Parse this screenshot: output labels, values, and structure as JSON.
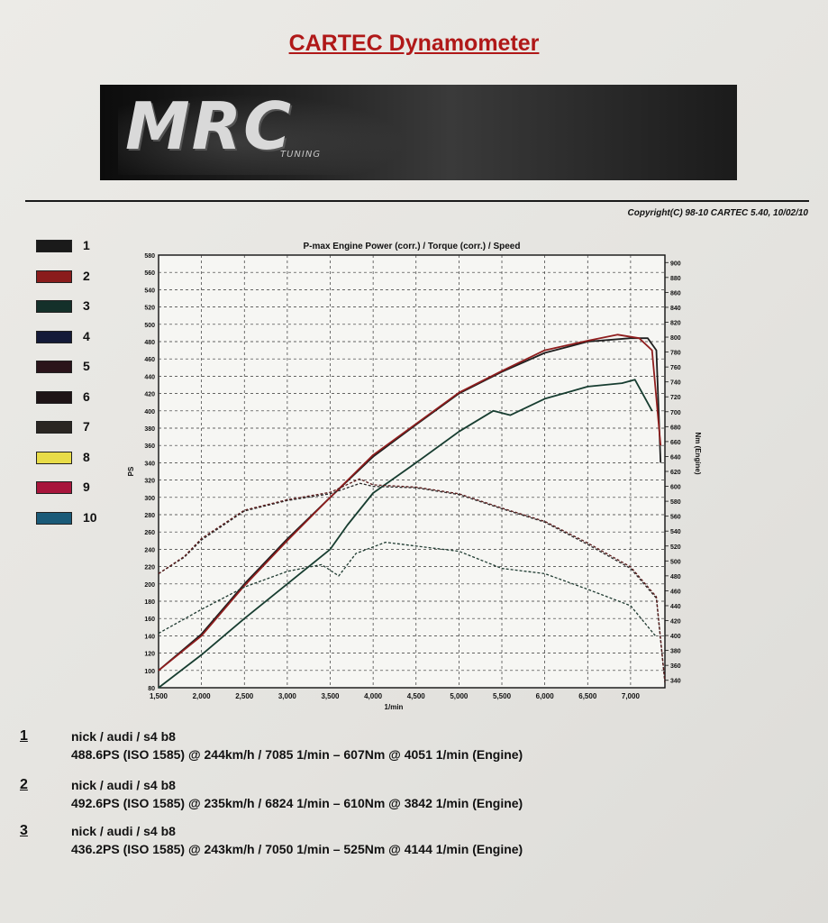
{
  "header": {
    "title": "CARTEC Dynamometer",
    "logo_text": "MRC",
    "logo_subtext": "TUNING",
    "copyright": "Copyright(C) 98-10 CARTEC 5.40, 10/02/10"
  },
  "legend": [
    {
      "label": "1",
      "color": "#1a1a1a"
    },
    {
      "label": "2",
      "color": "#8a1c1c"
    },
    {
      "label": "3",
      "color": "#14302a"
    },
    {
      "label": "4",
      "color": "#141a38"
    },
    {
      "label": "5",
      "color": "#2a141a"
    },
    {
      "label": "6",
      "color": "#1e1416"
    },
    {
      "label": "7",
      "color": "#2a2622"
    },
    {
      "label": "8",
      "color": "#e8dc48"
    },
    {
      "label": "9",
      "color": "#a8163c"
    },
    {
      "label": "10",
      "color": "#1a5a78"
    }
  ],
  "chart_data": {
    "type": "line",
    "title": "P-max Engine Power (corr.) / Torque (corr.) / Speed",
    "xlabel": "1/min",
    "ylabel": "PS",
    "y2label": "Nm (Engine)",
    "xlim": [
      1500,
      7400
    ],
    "ylim": [
      80,
      580
    ],
    "y2lim": [
      330,
      910
    ],
    "x_ticks": [
      "1,500",
      "2,000",
      "2,500",
      "3,000",
      "3,500",
      "4,000",
      "4,500",
      "5,000",
      "5,500",
      "6,000",
      "6,500",
      "7,000"
    ],
    "x_tick_values": [
      1500,
      2000,
      2500,
      3000,
      3500,
      4000,
      4500,
      5000,
      5500,
      6000,
      6500,
      7000
    ],
    "y_ticks": [
      "80",
      "100",
      "120",
      "140",
      "160",
      "180",
      "200",
      "220",
      "240",
      "260",
      "280",
      "300",
      "320",
      "340",
      "360",
      "380",
      "400",
      "420",
      "440",
      "460",
      "480",
      "500",
      "520",
      "540",
      "560",
      "580"
    ],
    "y2_ticks": [
      "340",
      "360",
      "380",
      "400",
      "420",
      "440",
      "460",
      "480",
      "500",
      "520",
      "540",
      "560",
      "580",
      "600",
      "620",
      "640",
      "660",
      "680",
      "700",
      "720",
      "740",
      "760",
      "780",
      "800",
      "820",
      "840",
      "860",
      "880",
      "900"
    ],
    "grid": true,
    "series": [
      {
        "name": "1",
        "quantity": "power",
        "color": "#1e1e1e",
        "dashed": false,
        "x": [
          1500,
          2000,
          2500,
          3000,
          3500,
          4000,
          4500,
          5000,
          5500,
          6000,
          6500,
          7000,
          7200,
          7300,
          7350
        ],
        "y": [
          100,
          142,
          200,
          252,
          300,
          347,
          384,
          420,
          445,
          467,
          480,
          484,
          484,
          470,
          340
        ]
      },
      {
        "name": "2",
        "quantity": "power",
        "color": "#8f1d1d",
        "dashed": false,
        "x": [
          1500,
          2000,
          2500,
          3000,
          3500,
          4000,
          4500,
          5000,
          5500,
          6000,
          6500,
          6850,
          7100,
          7250,
          7350
        ],
        "y": [
          100,
          140,
          198,
          250,
          300,
          349,
          385,
          421,
          446,
          470,
          481,
          488,
          484,
          470,
          360
        ]
      },
      {
        "name": "3",
        "quantity": "power",
        "color": "#173d30",
        "dashed": false,
        "x": [
          1500,
          2000,
          2500,
          3000,
          3500,
          3700,
          4000,
          4500,
          5000,
          5400,
          5600,
          6000,
          6500,
          6900,
          7050,
          7250
        ],
        "y": [
          80,
          118,
          160,
          200,
          240,
          268,
          305,
          340,
          376,
          400,
          395,
          414,
          428,
          432,
          436,
          400
        ]
      },
      {
        "name": "1",
        "quantity": "torque",
        "color": "#2a2a2a",
        "dashed": true,
        "x": [
          1500,
          1800,
          2000,
          2500,
          3000,
          3500,
          3850,
          4000,
          4500,
          5000,
          5500,
          6000,
          6500,
          7000,
          7300,
          7400
        ],
        "y": [
          483,
          505,
          528,
          567,
          581,
          590,
          604,
          600,
          598,
          589,
          570,
          552,
          522,
          490,
          450,
          336
        ]
      },
      {
        "name": "2",
        "quantity": "torque",
        "color": "#5a1a1a",
        "dashed": true,
        "x": [
          1500,
          1800,
          2000,
          2500,
          3000,
          3500,
          3842,
          4000,
          4500,
          5000,
          5500,
          6000,
          6500,
          7000,
          7300,
          7400
        ],
        "y": [
          483,
          506,
          530,
          568,
          582,
          592,
          610,
          602,
          599,
          590,
          571,
          553,
          524,
          492,
          452,
          338
        ]
      },
      {
        "name": "3",
        "quantity": "torque",
        "color": "#1e3a30",
        "dashed": true,
        "x": [
          1500,
          2000,
          2500,
          3000,
          3400,
          3600,
          3800,
          4144,
          4500,
          5000,
          5500,
          6000,
          6500,
          7000,
          7300
        ],
        "y": [
          403,
          435,
          465,
          486,
          495,
          480,
          510,
          525,
          520,
          513,
          490,
          483,
          462,
          440,
          398
        ]
      }
    ]
  },
  "results": [
    {
      "num": "1",
      "line1": "nick / audi / s4 b8",
      "line2": "488.6PS (ISO 1585) @ 244km/h / 7085 1/min – 607Nm @ 4051 1/min (Engine)"
    },
    {
      "num": "2",
      "line1": "nick / audi / s4 b8",
      "line2": "492.6PS (ISO 1585) @ 235km/h / 6824 1/min – 610Nm @ 3842 1/min (Engine)"
    },
    {
      "num": "3",
      "line1": "nick / audi / s4 b8",
      "line2": "436.2PS (ISO 1585) @ 243km/h / 7050 1/min – 525Nm @ 4144 1/min (Engine)"
    }
  ]
}
